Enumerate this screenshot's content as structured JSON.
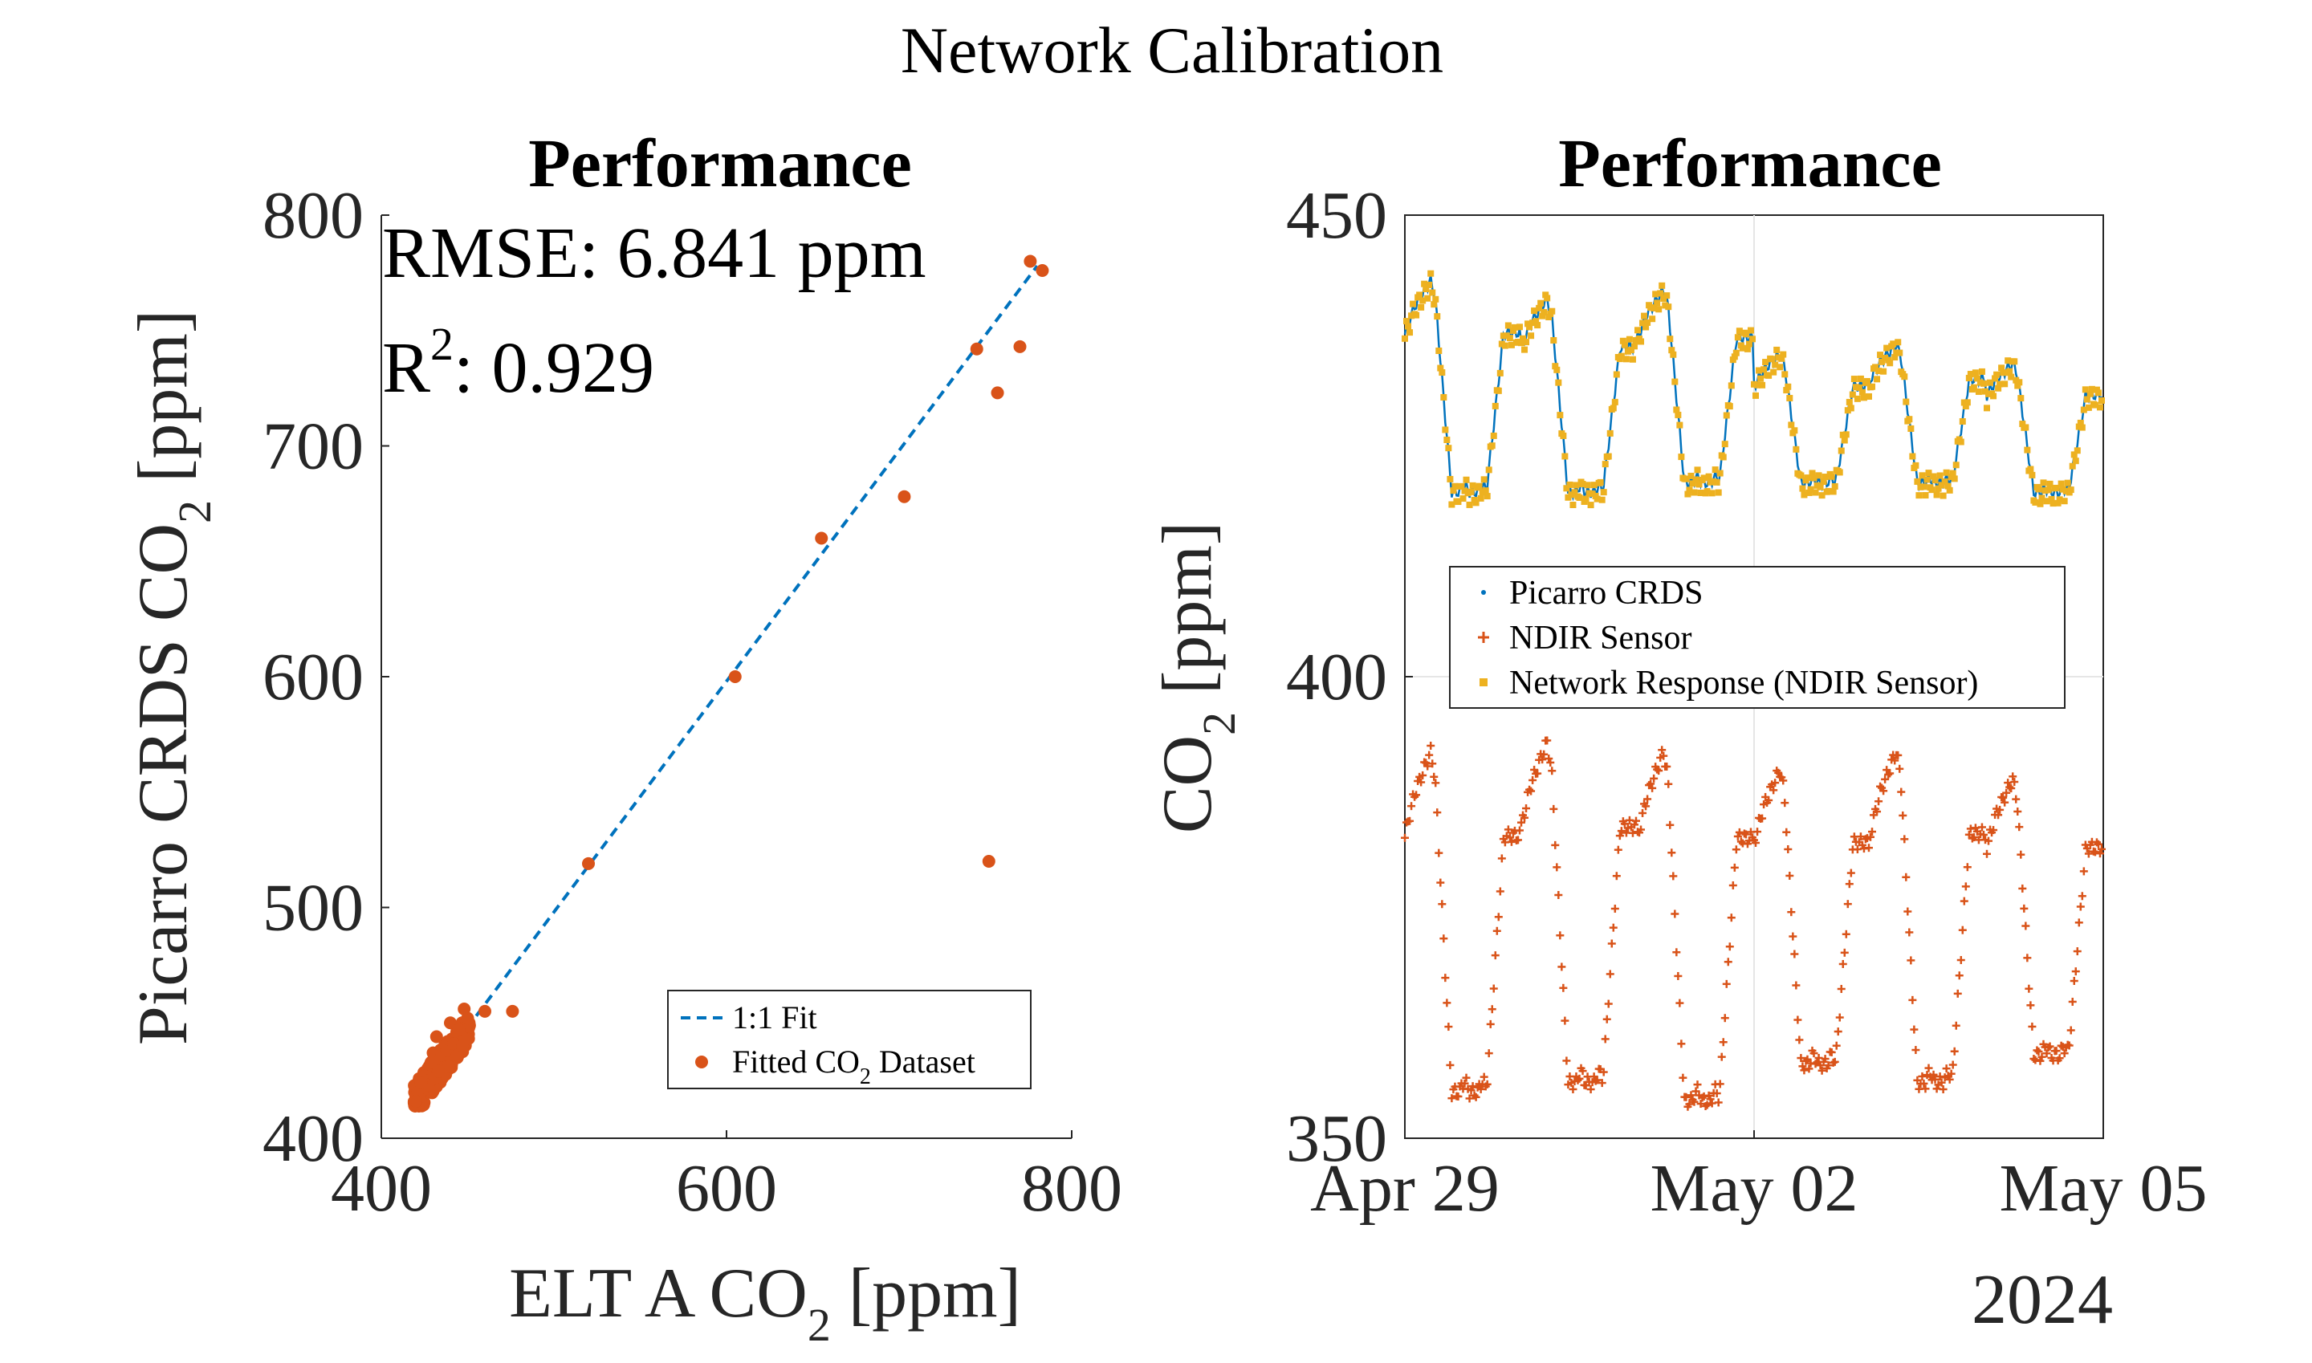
{
  "figure": {
    "suptitle": "Network Calibration"
  },
  "colors": {
    "fit_line": "#0072BD",
    "orange": "#D95319",
    "yellow": "#EDB120",
    "blue": "#0072BD",
    "axis": "#262626",
    "grid": "#E6E6E6"
  },
  "chart_data": [
    {
      "type": "scatter",
      "title": "Performance",
      "xlabel": {
        "main": "ELT A CO",
        "sub": "2",
        "tail": " [ppm]"
      },
      "ylabel": {
        "main": "Picarro CRDS CO",
        "sub": "2",
        "tail": " [ppm]"
      },
      "xlim": [
        400,
        800
      ],
      "ylim": [
        400,
        800
      ],
      "xticks": [
        "400",
        "600",
        "800"
      ],
      "yticks": [
        "400",
        "500",
        "600",
        "700",
        "800"
      ],
      "grid": false,
      "annotation": {
        "rmse": "RMSE: 6.841 ppm",
        "r2_main": "R",
        "r2_sup": "2",
        "r2_tail": ": 0.929"
      },
      "legend": {
        "position": "bottom-right",
        "entries": [
          {
            "main": "1:1 Fit",
            "sub": "",
            "tail": ""
          },
          {
            "main": "Fitted CO",
            "sub": "2",
            "tail": " Dataset"
          }
        ]
      },
      "fit_line": {
        "x": [
          455,
          780
        ],
        "y": [
          453,
          778
        ]
      },
      "points": [
        [
          655,
          660
        ],
        [
          703,
          678
        ],
        [
          745,
          742
        ],
        [
          770,
          743
        ],
        [
          757,
          723
        ],
        [
          776,
          780
        ],
        [
          783,
          776
        ],
        [
          605,
          600
        ],
        [
          520,
          519
        ],
        [
          752,
          520
        ],
        [
          476,
          455
        ],
        [
          460,
          455
        ],
        [
          450,
          452
        ],
        [
          448,
          456
        ],
        [
          440,
          450
        ],
        [
          445,
          447
        ],
        [
          432,
          444
        ],
        [
          437,
          440
        ],
        [
          441,
          443
        ],
        [
          430,
          437
        ],
        [
          433,
          432
        ],
        [
          428,
          430
        ],
        [
          425,
          427
        ],
        [
          424,
          421
        ],
        [
          422,
          418
        ],
        [
          421,
          420
        ],
        [
          426,
          425
        ],
        [
          429,
          433
        ],
        [
          435,
          436
        ],
        [
          438,
          438
        ],
        [
          442,
          441
        ],
        [
          444,
          436
        ],
        [
          447,
          440
        ],
        [
          436,
          428
        ],
        [
          431,
          426
        ],
        [
          439,
          431
        ],
        [
          427,
          423
        ],
        [
          433,
          429
        ],
        [
          423,
          424
        ],
        [
          420,
          416
        ]
      ],
      "cluster": {
        "x": [
          419,
          452
        ],
        "y": [
          414,
          450
        ],
        "count": 240
      }
    },
    {
      "type": "line",
      "title": "Performance",
      "ylabel": {
        "main": "CO",
        "sub": "2",
        "tail": " [ppm]"
      },
      "ylim": [
        350,
        450
      ],
      "yticks": [
        "350",
        "400",
        "450"
      ],
      "xlim": [
        "2024-04-29",
        "2024-05-05"
      ],
      "xticks": [
        "Apr 29",
        "May 02",
        "May 05"
      ],
      "x_year_label": "2024",
      "grid": true,
      "legend": {
        "position": "center-left",
        "entries": [
          "Picarro CRDS",
          "NDIR Sensor",
          "Network Response (NDIR Sensor)"
        ]
      },
      "series_profiles": {
        "picarro": {
          "days": [
            {
              "start": "2024-04-29",
              "peak": 443,
              "base": 420
            },
            {
              "start": "2024-04-30",
              "peak": 441,
              "base": 420
            },
            {
              "start": "2024-05-01",
              "peak": 442,
              "base": 421
            },
            {
              "start": "2024-05-02",
              "peak": 435,
              "base": 421
            },
            {
              "start": "2024-05-03",
              "peak": 436,
              "base": 421
            },
            {
              "start": "2024-05-04",
              "peak": 434,
              "base": 420
            }
          ]
        },
        "ndir": {
          "days": [
            {
              "start": "2024-04-29",
              "peak": 392,
              "base": 355
            },
            {
              "start": "2024-04-30",
              "peak": 393,
              "base": 356
            },
            {
              "start": "2024-05-01",
              "peak": 392,
              "base": 354
            },
            {
              "start": "2024-05-02",
              "peak": 390,
              "base": 358
            },
            {
              "start": "2024-05-03",
              "peak": 392,
              "base": 356
            },
            {
              "start": "2024-05-04",
              "peak": 389,
              "base": 359
            }
          ]
        }
      }
    }
  ]
}
